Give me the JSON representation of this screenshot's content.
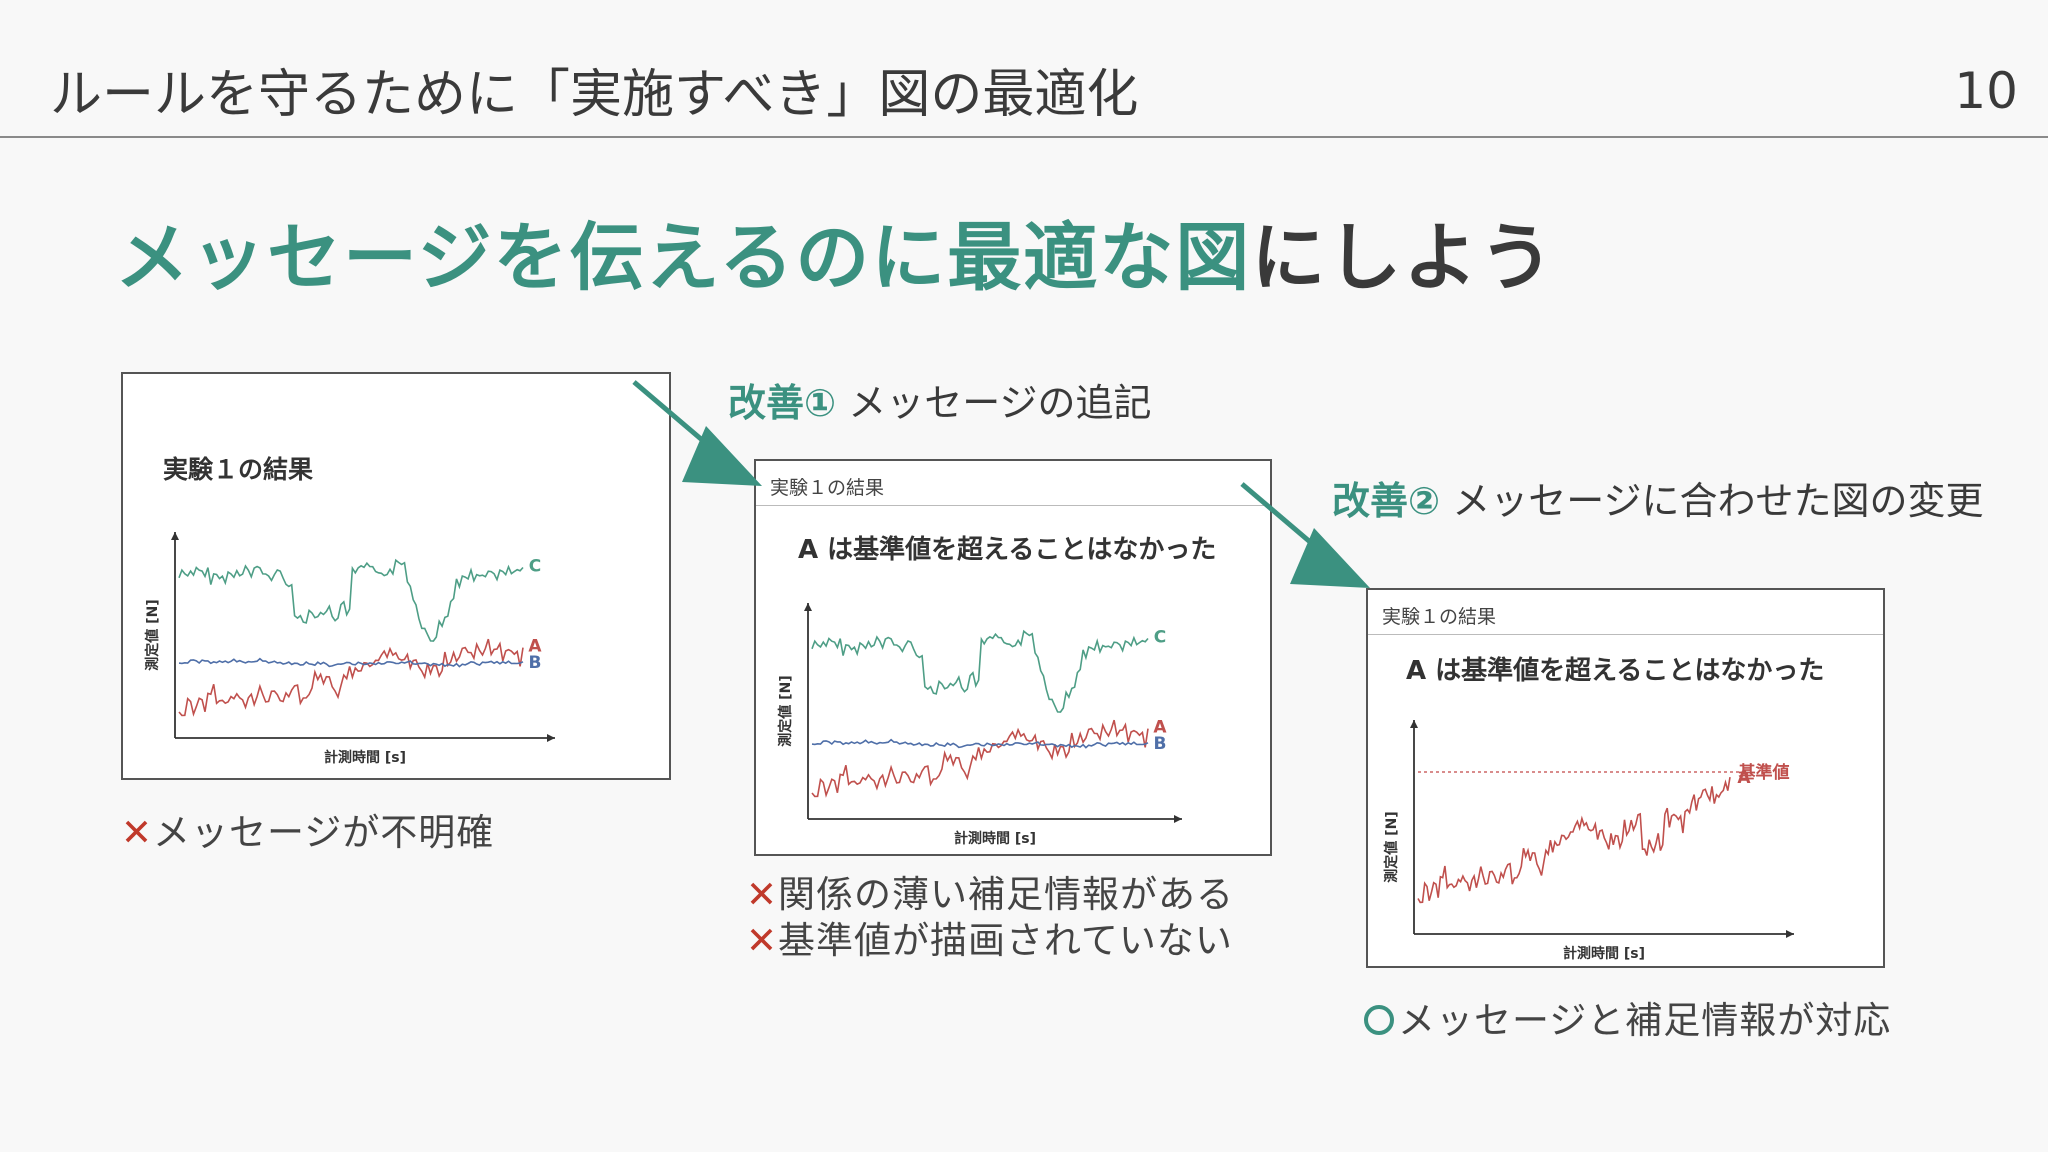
{
  "header": {
    "title": "ルールを守るために「実施すべき」図の最適化",
    "page_number": "10"
  },
  "headline": {
    "accent": "メッセージを伝えるのに最適な図",
    "plain": "にしよう"
  },
  "improvements": [
    {
      "num": "改善①",
      "text": "メッセージの追記"
    },
    {
      "num": "改善②",
      "text": "メッセージに合わせた図の変更"
    }
  ],
  "panels": {
    "original": {
      "title": "実験１の結果",
      "xlabel": "計測時間 [s]",
      "ylabel": "測定値 [N]",
      "series_labels": [
        "C",
        "A",
        "B"
      ]
    },
    "improved1": {
      "header": "実験１の結果",
      "message": "A は基準値を超えることはなかった",
      "xlabel": "計測時間 [s]",
      "ylabel": "測定値 [N]",
      "series_labels": [
        "C",
        "A",
        "B"
      ]
    },
    "improved2": {
      "header": "実験１の結果",
      "message": "A は基準値を超えることはなかった",
      "xlabel": "計測時間 [s]",
      "ylabel": "測定値 [N]",
      "threshold_label": "基準値",
      "series_label": "A"
    }
  },
  "notes": {
    "original": [
      {
        "mark": "✕",
        "text": "メッセージが不明確"
      }
    ],
    "improved1": [
      {
        "mark": "✕",
        "text": "関係の薄い補足情報がある"
      },
      {
        "mark": "✕",
        "text": "基準値が描画されていない"
      }
    ],
    "improved2": [
      {
        "mark": "○",
        "text": "メッセージと補足情報が対応"
      }
    ]
  },
  "colors": {
    "accent": "#3b9180",
    "series_a": "#c0504d",
    "series_b": "#4f6fa8",
    "series_c": "#4e9e86",
    "bad": "#c0392b"
  }
}
